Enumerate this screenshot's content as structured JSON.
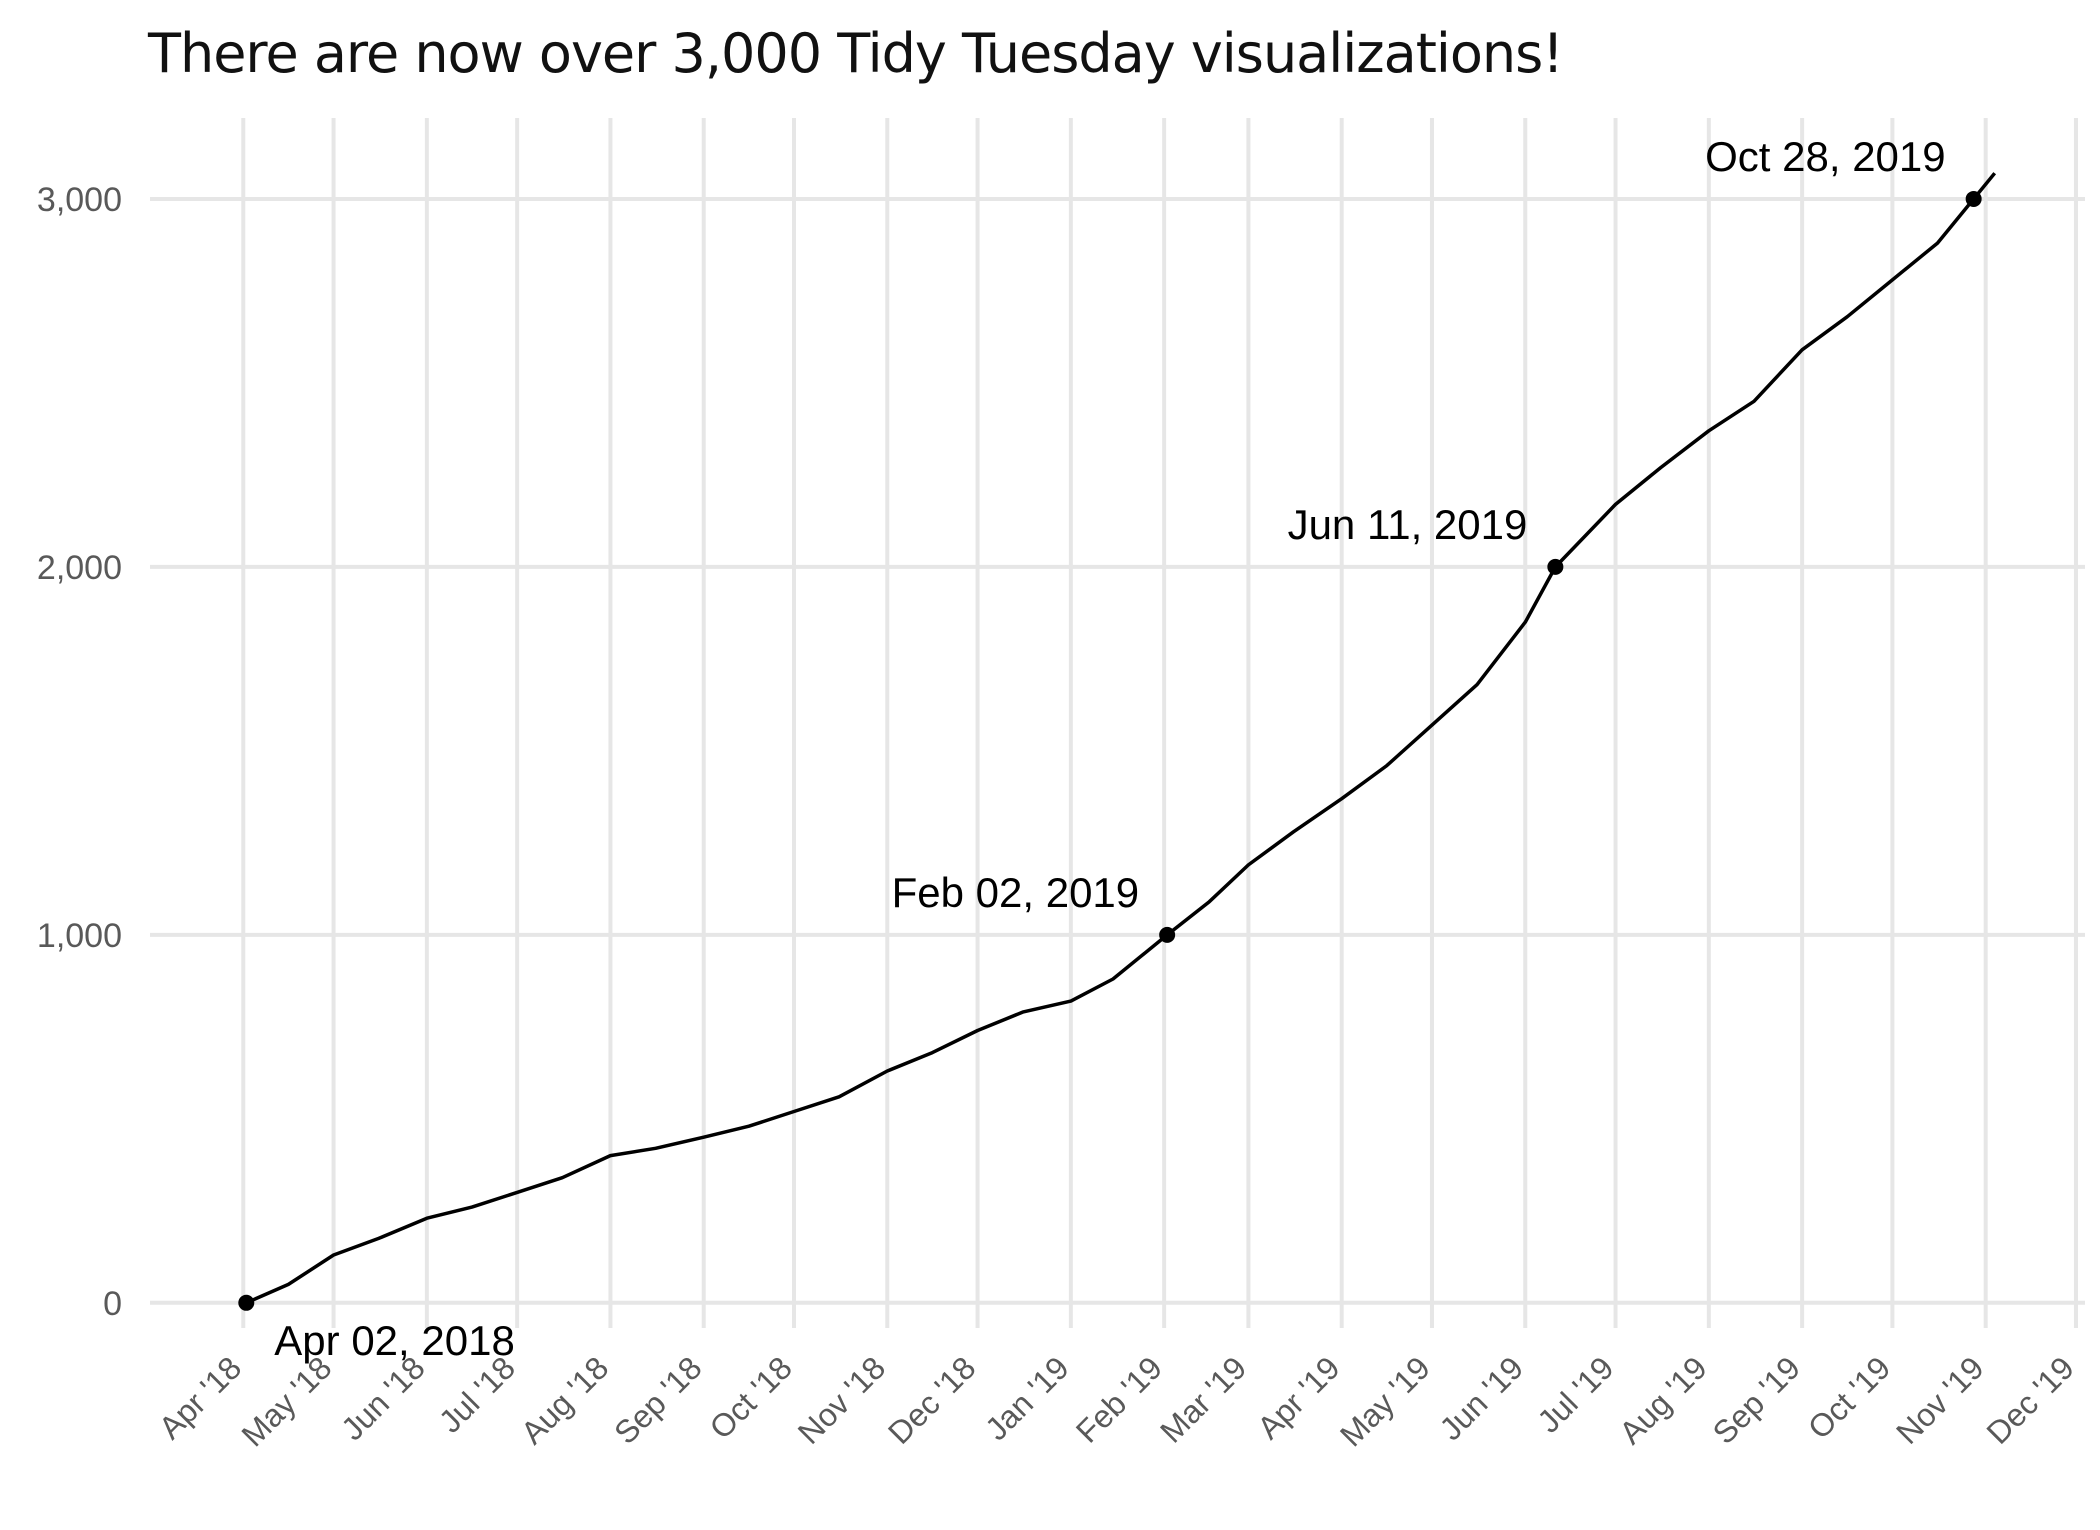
{
  "chart_data": {
    "type": "line",
    "title": "There are now over 3,000 Tidy Tuesday visualizations!",
    "xlabel": "",
    "ylabel": "",
    "x_axis_ticks": [
      "2018-04-01",
      "2018-05-01",
      "2018-06-01",
      "2018-07-01",
      "2018-08-01",
      "2018-09-01",
      "2018-10-01",
      "2018-11-01",
      "2018-12-01",
      "2019-01-01",
      "2019-02-01",
      "2019-03-01",
      "2019-04-01",
      "2019-05-01",
      "2019-06-01",
      "2019-07-01",
      "2019-08-01",
      "2019-09-01",
      "2019-10-01",
      "2019-11-01",
      "2019-12-01"
    ],
    "x_tick_labels": [
      "Apr '18",
      "May '18",
      "Jun '18",
      "Jul '18",
      "Aug '18",
      "Sep '18",
      "Oct '18",
      "Nov '18",
      "Dec '18",
      "Jan '19",
      "Feb '19",
      "Mar '19",
      "Apr '19",
      "May '19",
      "Jun '19",
      "Jul '19",
      "Aug '19",
      "Sep '19",
      "Oct '19",
      "Nov '19",
      "Dec '19"
    ],
    "y_ticks": [
      0,
      1000,
      2000,
      3000
    ],
    "y_tick_labels": [
      "0",
      "1,000",
      "2,000",
      "3,000"
    ],
    "ylim": [
      -150,
      3220
    ],
    "xlim": [
      "2018-03-01",
      "2019-12-04"
    ],
    "grid": true,
    "series": [
      {
        "points": [
          [
            "2018-04-02",
            0
          ],
          [
            "2018-04-16",
            50
          ],
          [
            "2018-05-01",
            130
          ],
          [
            "2018-05-16",
            175
          ],
          [
            "2018-06-01",
            230
          ],
          [
            "2018-06-16",
            260
          ],
          [
            "2018-07-01",
            300
          ],
          [
            "2018-07-16",
            340
          ],
          [
            "2018-08-01",
            400
          ],
          [
            "2018-08-16",
            420
          ],
          [
            "2018-09-01",
            450
          ],
          [
            "2018-09-16",
            480
          ],
          [
            "2018-10-01",
            520
          ],
          [
            "2018-10-16",
            560
          ],
          [
            "2018-11-01",
            630
          ],
          [
            "2018-11-16",
            680
          ],
          [
            "2018-12-01",
            740
          ],
          [
            "2018-12-16",
            790
          ],
          [
            "2019-01-01",
            820
          ],
          [
            "2019-01-15",
            880
          ],
          [
            "2019-02-02",
            1000
          ],
          [
            "2019-02-16",
            1090
          ],
          [
            "2019-03-01",
            1190
          ],
          [
            "2019-03-16",
            1280
          ],
          [
            "2019-04-01",
            1370
          ],
          [
            "2019-04-16",
            1460
          ],
          [
            "2019-05-01",
            1570
          ],
          [
            "2019-05-16",
            1680
          ],
          [
            "2019-06-01",
            1850
          ],
          [
            "2019-06-11",
            2000
          ],
          [
            "2019-07-01",
            2170
          ],
          [
            "2019-07-16",
            2270
          ],
          [
            "2019-08-01",
            2370
          ],
          [
            "2019-08-16",
            2450
          ],
          [
            "2019-09-01",
            2590
          ],
          [
            "2019-09-16",
            2680
          ],
          [
            "2019-10-01",
            2780
          ],
          [
            "2019-10-16",
            2880
          ],
          [
            "2019-10-28",
            3000
          ],
          [
            "2019-11-04",
            3070
          ]
        ]
      }
    ],
    "annotations": [
      {
        "date": "2018-04-02",
        "value": 0,
        "label": "Apr 02, 2018",
        "placement": "below-right"
      },
      {
        "date": "2019-02-02",
        "value": 1000,
        "label": "Feb 02, 2019",
        "placement": "above-left"
      },
      {
        "date": "2019-06-11",
        "value": 2000,
        "label": "Jun 11, 2019",
        "placement": "above-left"
      },
      {
        "date": "2019-10-28",
        "value": 3000,
        "label": "Oct 28, 2019",
        "placement": "above-left"
      }
    ]
  }
}
